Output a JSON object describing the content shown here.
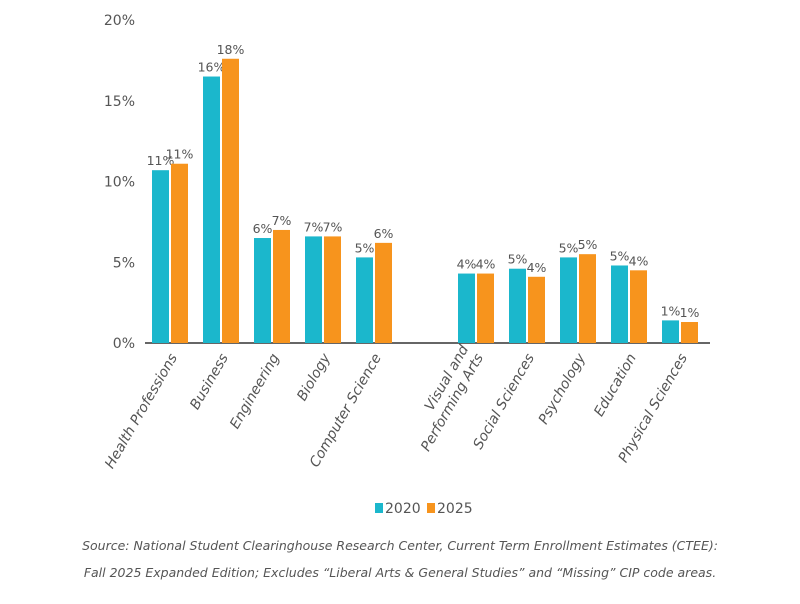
{
  "chart_data": {
    "type": "bar",
    "categories": [
      [
        "Health Professions"
      ],
      [
        "Business"
      ],
      [
        "Engineering"
      ],
      [
        "Biology"
      ],
      [
        "Computer Science"
      ],
      [
        "Visual and",
        "Performing Arts"
      ],
      [
        "Social Sciences"
      ],
      [
        "Psychology"
      ],
      [
        "Education"
      ],
      [
        "Physical Sciences"
      ]
    ],
    "series": [
      {
        "name": "2020",
        "color": "#1bb7cc",
        "values": [
          10.7,
          16.5,
          6.5,
          6.6,
          5.3,
          4.3,
          4.6,
          5.3,
          4.8,
          1.4
        ],
        "labels": [
          "11%",
          "16%",
          "6%",
          "7%",
          "5%",
          "4%",
          "5%",
          "5%",
          "5%",
          "1%"
        ]
      },
      {
        "name": "2025",
        "color": "#f7941d",
        "values": [
          11.1,
          17.6,
          7.0,
          6.6,
          6.2,
          4.3,
          4.1,
          5.5,
          4.5,
          1.3
        ],
        "labels": [
          "11%",
          "18%",
          "7%",
          "7%",
          "6%",
          "4%",
          "4%",
          "5%",
          "4%",
          "1%"
        ]
      }
    ],
    "yticks": [
      "0%",
      "5%",
      "10%",
      "15%",
      "20%"
    ],
    "ylim": [
      0,
      20
    ],
    "grid": false,
    "legend_position": "bottom-center"
  },
  "source": {
    "line1": "Source: National Student Clearinghouse Research Center, Current Term Enrollment Estimates (CTEE):",
    "line2": "Fall 2025 Expanded Edition; Excludes “Liberal Arts & General Studies” and “Missing” CIP code areas."
  }
}
